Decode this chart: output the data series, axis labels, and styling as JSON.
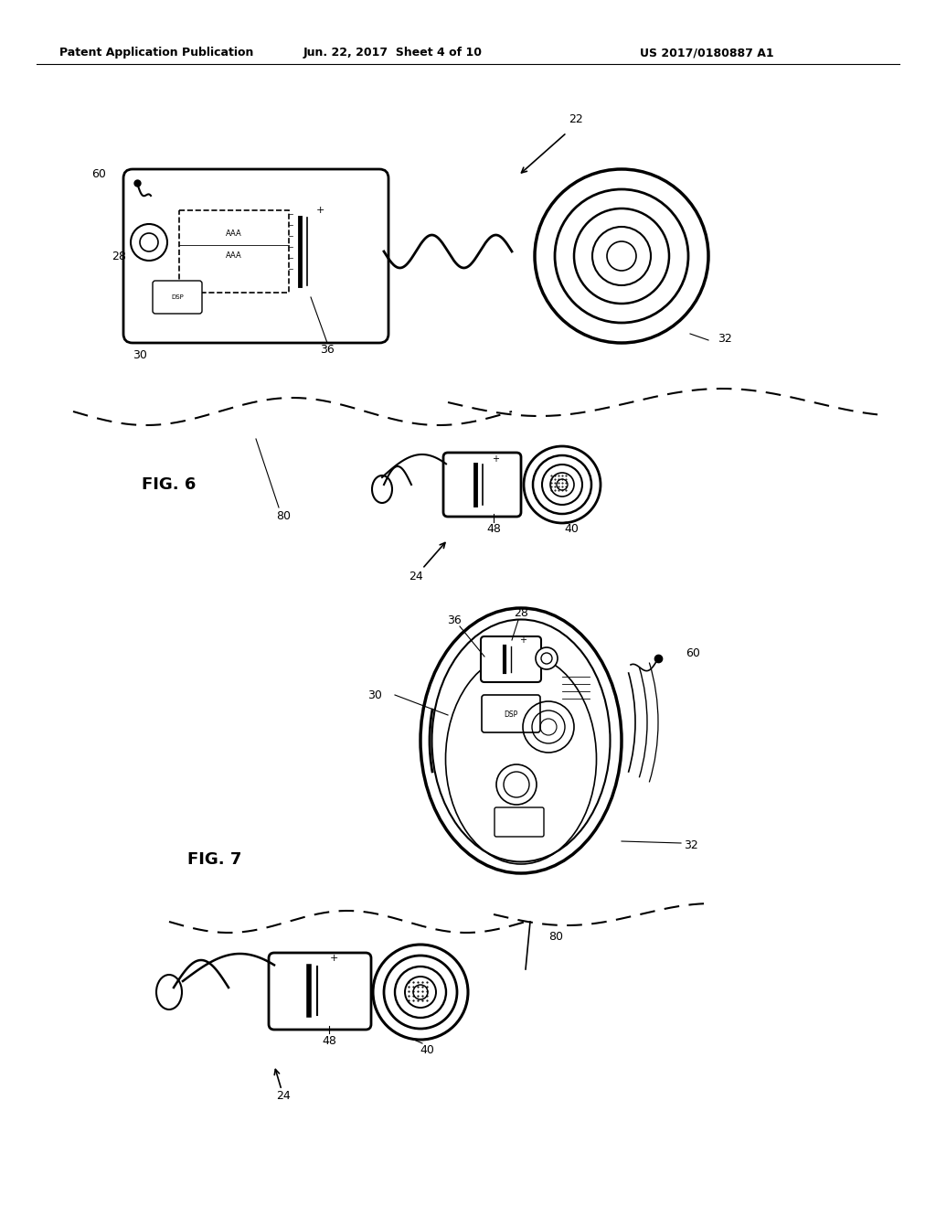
{
  "bg_color": "#ffffff",
  "header_left": "Patent Application Publication",
  "header_mid": "Jun. 22, 2017  Sheet 4 of 10",
  "header_right": "US 2017/0180887 A1",
  "fig_height": 13.2,
  "fig_width": 10.24,
  "dpi": 100
}
